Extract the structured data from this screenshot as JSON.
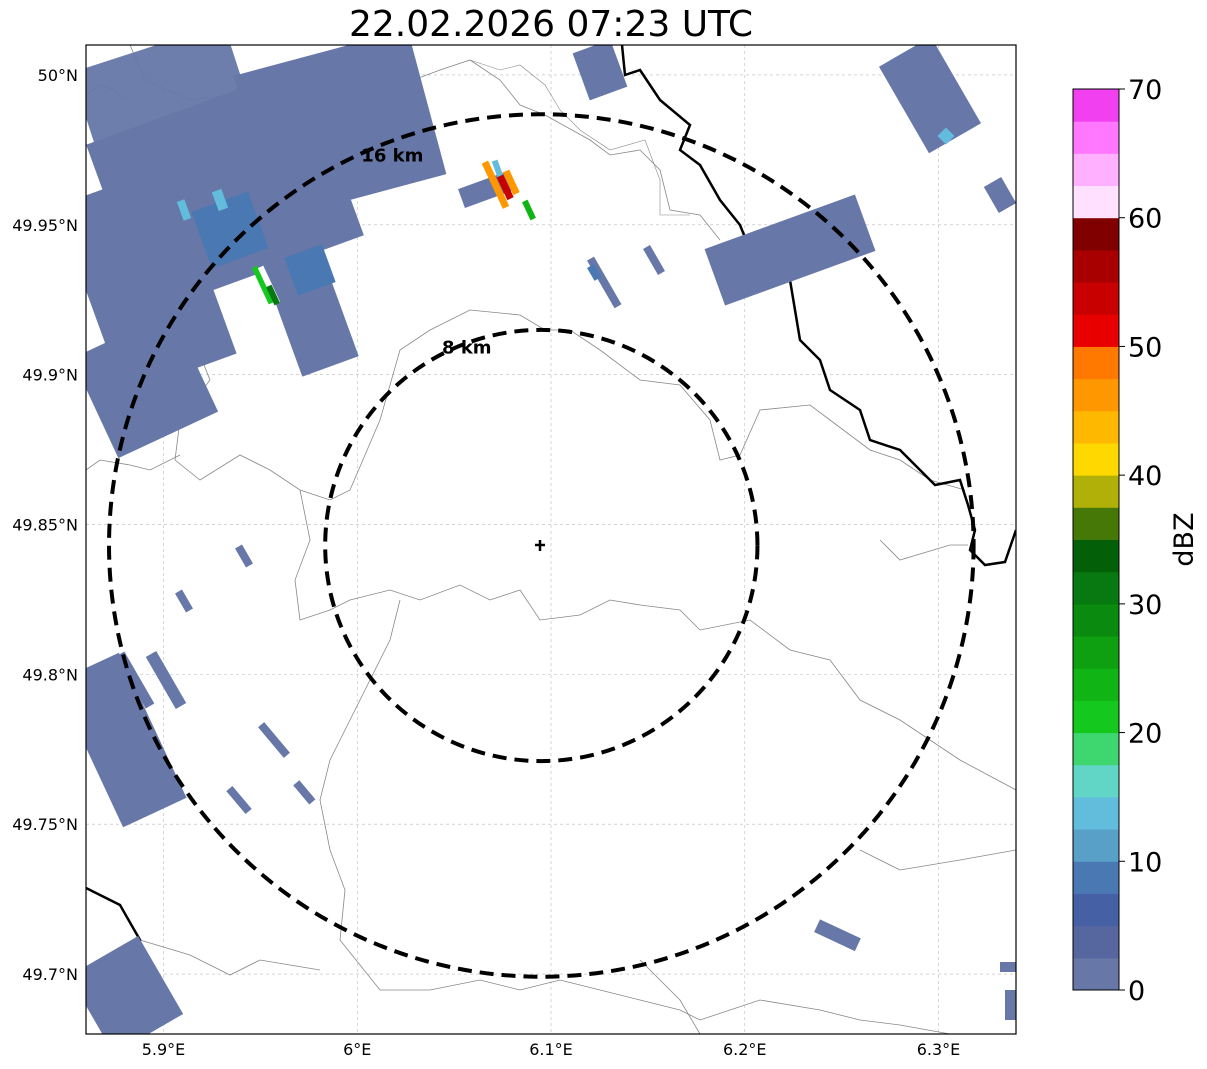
{
  "title": "22.02.2026 07:23 UTC",
  "map": {
    "lon_range": [
      5.86,
      6.34
    ],
    "lat_range": [
      49.68,
      50.01
    ],
    "center": {
      "lon": 6.095,
      "lat": 49.843
    },
    "gridlines": true
  },
  "axes": {
    "lon_ticks": [
      {
        "value": 5.9,
        "label": "5.9°E"
      },
      {
        "value": 6.0,
        "label": "6°E"
      },
      {
        "value": 6.1,
        "label": "6.1°E"
      },
      {
        "value": 6.2,
        "label": "6.2°E"
      },
      {
        "value": 6.3,
        "label": "6.3°E"
      }
    ],
    "lat_ticks": [
      {
        "value": 50.0,
        "label": "50°N"
      },
      {
        "value": 49.95,
        "label": "49.95°N"
      },
      {
        "value": 49.9,
        "label": "49.9°N"
      },
      {
        "value": 49.85,
        "label": "49.85°N"
      },
      {
        "value": 49.8,
        "label": "49.8°N"
      },
      {
        "value": 49.75,
        "label": "49.75°N"
      },
      {
        "value": 49.7,
        "label": "49.7°N"
      }
    ]
  },
  "range_rings": [
    {
      "radius_km": 8,
      "label": "8 km"
    },
    {
      "radius_km": 16,
      "label": "16 km"
    }
  ],
  "colorbar": {
    "label": "dBZ",
    "min": 0,
    "max": 70,
    "tick_values": [
      0,
      10,
      20,
      30,
      40,
      50,
      60,
      70
    ],
    "tick_labels": [
      "0",
      "10",
      "20",
      "30",
      "40",
      "50",
      "60",
      "70"
    ],
    "colors": [
      "#6677a8",
      "#5667a0",
      "#4560a5",
      "#4a78b2",
      "#58a0c8",
      "#62bcdc",
      "#62d6c6",
      "#3ed66e",
      "#14c81e",
      "#10b414",
      "#0ea010",
      "#0a8a0e",
      "#087810",
      "#046008",
      "#467808",
      "#b0b008",
      "#ffd800",
      "#ffb800",
      "#ff9800",
      "#ff7800",
      "#e80000",
      "#c80000",
      "#a80000",
      "#800000",
      "#ffe0ff",
      "#ffb0ff",
      "#ff78ff",
      "#f040f0"
    ]
  }
}
